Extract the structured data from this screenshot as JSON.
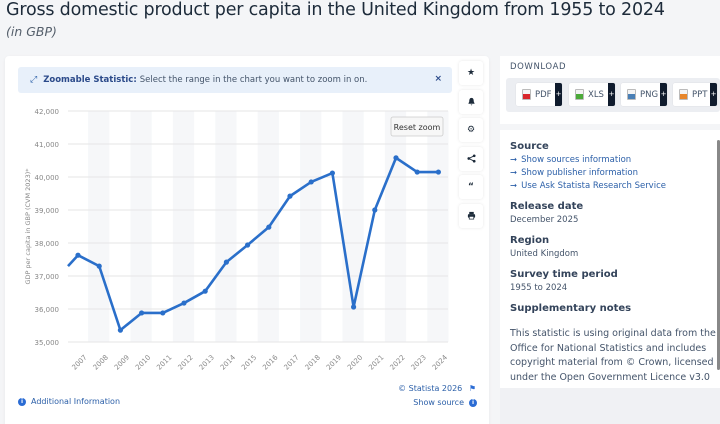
{
  "header": {
    "title": "Gross domestic product per capita in the United Kingdom from 1955 to 2024",
    "subtitle": "(in GBP)"
  },
  "zoom_banner": {
    "icon": "expand-arrows-icon",
    "bold": "Zoomable Statistic:",
    "text": "Select the range in the chart you want to zoom in on.",
    "close": "×"
  },
  "chart_controls": {
    "reset_zoom": "Reset zoom"
  },
  "toolbar": [
    {
      "name": "favorite",
      "icon": "★"
    },
    {
      "name": "notification",
      "icon": "🔔"
    },
    {
      "name": "settings",
      "icon": "⚙"
    },
    {
      "name": "share",
      "icon": "<"
    },
    {
      "name": "cite",
      "icon": "❝"
    },
    {
      "name": "print",
      "icon": "⎙"
    }
  ],
  "download": {
    "label": "DOWNLOAD",
    "formats": [
      {
        "label": "PDF",
        "color": "#d9262b"
      },
      {
        "label": "XLS",
        "color": "#4caa3a"
      },
      {
        "label": "PNG",
        "color": "#4a7fb5"
      },
      {
        "label": "PPT",
        "color": "#e8862a"
      }
    ],
    "plus": "+"
  },
  "info": {
    "source_heading": "Source",
    "source_links": [
      "Show sources information",
      "Show publisher information",
      "Use Ask Statista Research Service"
    ],
    "link_arrow": "➞",
    "release_heading": "Release date",
    "release_value": "December 2025",
    "region_heading": "Region",
    "region_value": "United Kingdom",
    "period_heading": "Survey time period",
    "period_value": "1955 to 2024",
    "notes_heading": "Supplementary notes",
    "notes_text": "This statistic is using original data from the Office for National Statistics and includes copyright material from © Crown, licensed under the Open Government Licence v3.0"
  },
  "footer": {
    "additional_info": "Additional Information",
    "copyright": "© Statista 2026",
    "show_source": "Show source"
  },
  "colors": {
    "line": "#2a6fca",
    "accent": "#2b5fa8"
  },
  "chart_data": {
    "type": "line",
    "title": "Gross domestic product per capita in the United Kingdom from 1955 to 2024",
    "subtitle": "(in GBP)",
    "xlabel": "",
    "ylabel": "GDP per capita in GBP (CVM 2023)*",
    "ylim": [
      35000,
      42000
    ],
    "yticks": [
      35000,
      36000,
      37000,
      38000,
      39000,
      40000,
      41000,
      42000
    ],
    "ytick_labels": [
      "35,000",
      "36,000",
      "37,000",
      "38,000",
      "39,000",
      "40,000",
      "41,000",
      "42,000"
    ],
    "grid": true,
    "legend": "none",
    "leading_partial_point": {
      "x": "2006",
      "y": 37300
    },
    "categories": [
      "2007",
      "2008",
      "2009",
      "2010",
      "2011",
      "2012",
      "2013",
      "2014",
      "2015",
      "2016",
      "2017",
      "2018",
      "2019",
      "2020",
      "2021",
      "2022",
      "2023",
      "2024"
    ],
    "series": [
      {
        "name": "GDP per capita",
        "values": [
          37630,
          37300,
          35360,
          35880,
          35880,
          36180,
          36540,
          37420,
          37940,
          38480,
          39420,
          39850,
          40120,
          36060,
          39000,
          40580,
          40150,
          40150
        ]
      }
    ]
  }
}
